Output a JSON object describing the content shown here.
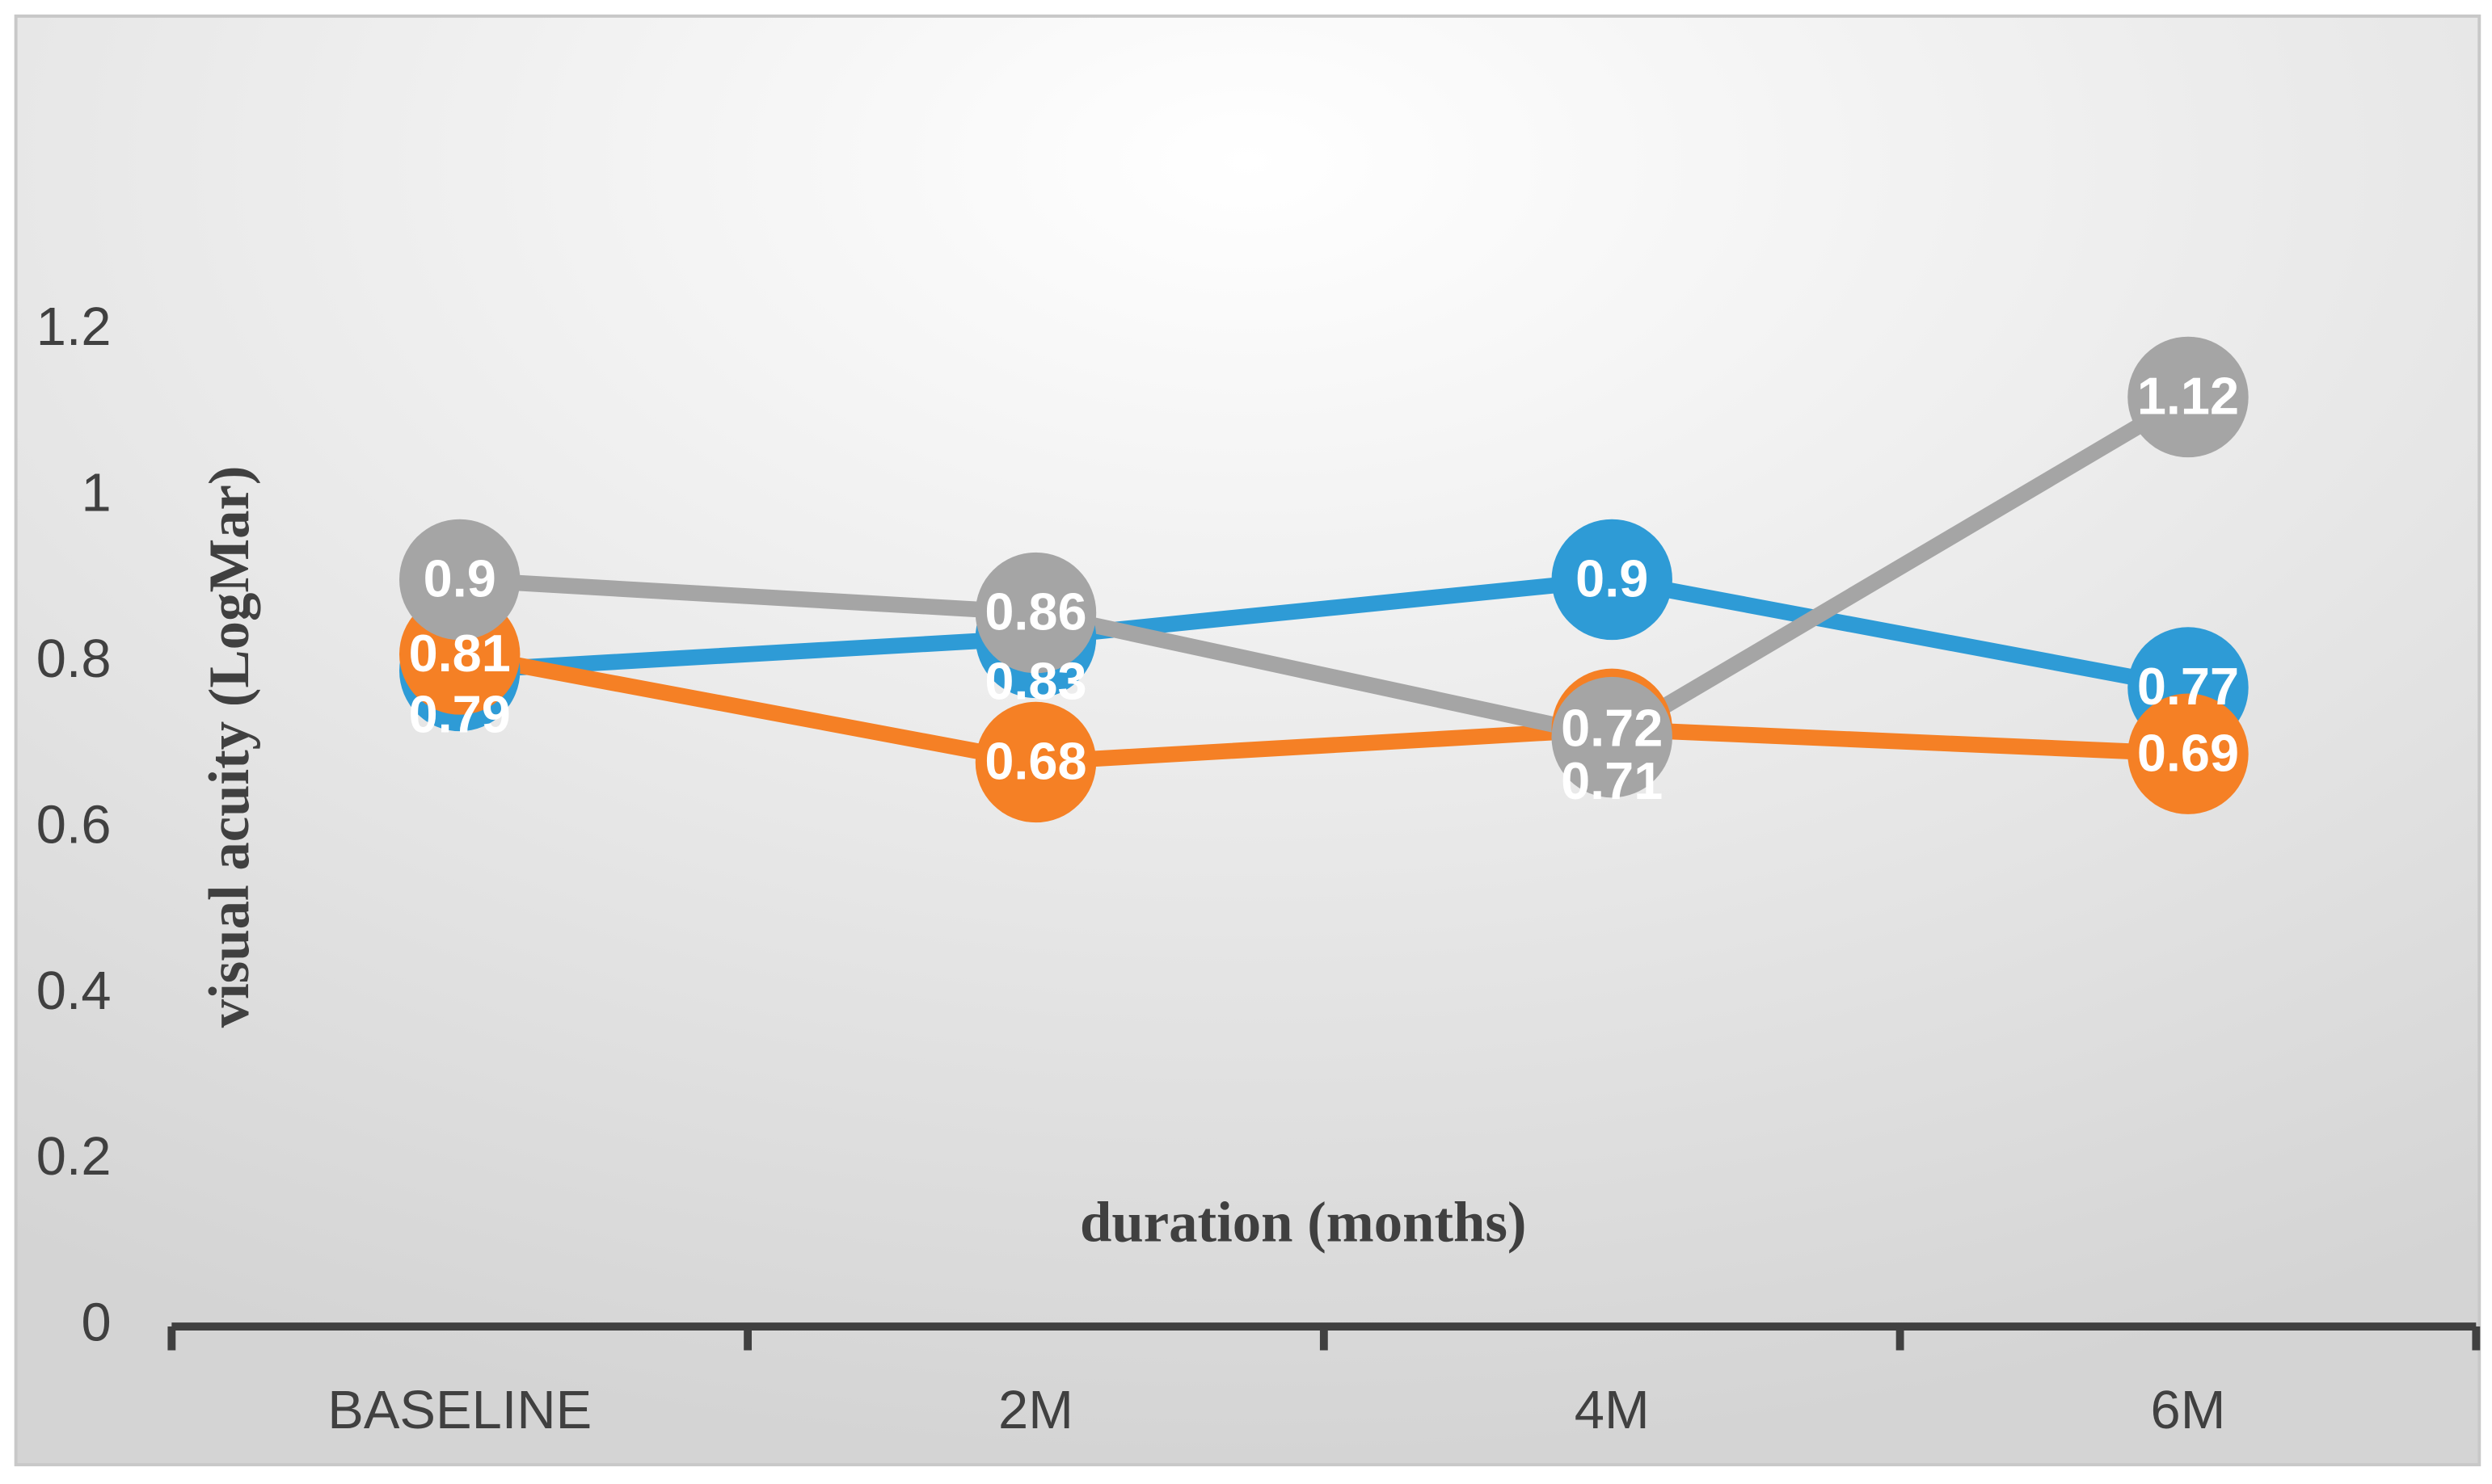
{
  "chart_data": {
    "type": "line",
    "x_label": "duration (months)",
    "y_label": "visual acuity (LogMar)",
    "categories": [
      "BASELINE",
      "2M",
      "4M",
      "6M"
    ],
    "series": [
      {
        "color": "#2e9bd6",
        "values": [
          0.79,
          0.83,
          0.9,
          0.77
        ]
      },
      {
        "color": "#f58025",
        "values": [
          0.81,
          0.68,
          0.72,
          0.69
        ]
      },
      {
        "color": "#a5a5a5",
        "values": [
          0.9,
          0.86,
          0.71,
          1.12
        ]
      }
    ],
    "ylim": [
      0,
      1.2
    ],
    "yticks": [
      0,
      0.2,
      0.4,
      0.6,
      0.8,
      1,
      1.2
    ],
    "data_labels": true
  }
}
